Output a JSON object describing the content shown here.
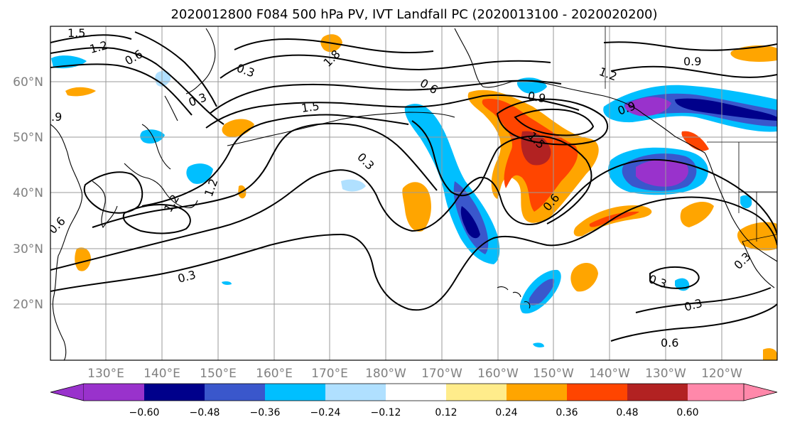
{
  "title": "2020012800 F084 500 hPa PV, IVT Landfall PC (2020013100 - 2020020200)",
  "lat_labels": [
    "60°N",
    "50°N",
    "40°N",
    "30°N",
    "20°N"
  ],
  "lon_labels": [
    "130°E",
    "140°E",
    "150°E",
    "160°E",
    "170°E",
    "180°W",
    "170°W",
    "160°W",
    "150°W",
    "140°W",
    "130°W",
    "120°W"
  ],
  "colorbar": {
    "tick_labels": [
      "−0.60",
      "−0.48",
      "−0.36",
      "−0.24",
      "−0.12",
      "0.12",
      "0.24",
      "0.36",
      "0.48",
      "0.60"
    ],
    "colors": [
      "#9932cc",
      "#00008b",
      "#3a57cc",
      "#00bfff",
      "#b0e0ff",
      "#ffffff",
      "#ffec8b",
      "#ffa500",
      "#ff4500",
      "#b22222",
      "#ff88aa"
    ]
  },
  "contour_labels": [
    "1.5",
    "1.2",
    "0.6",
    "0.3",
    "0.3",
    "1.8",
    "0.6",
    "1.5",
    "1.2",
    "0.9",
    "0.9",
    "0.3",
    "1.2",
    "0.6",
    "0.3",
    "0.6",
    "0.3",
    "0.3",
    "0.6",
    "0.3",
    "1.2",
    "1.5",
    "0.9",
    ".9"
  ]
}
